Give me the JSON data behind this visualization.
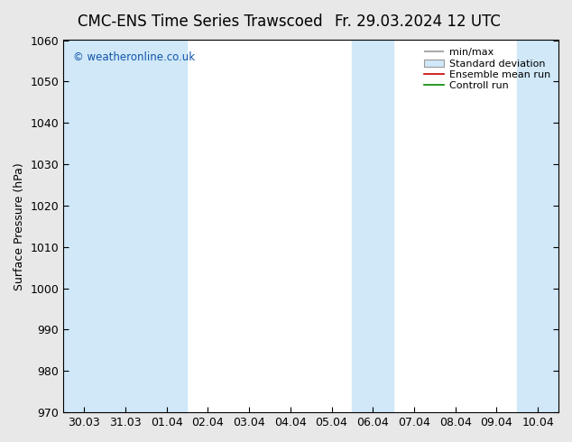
{
  "title_left": "CMC-ENS Time Series Trawscoed",
  "title_right": "Fr. 29.03.2024 12 UTC",
  "ylabel": "Surface Pressure (hPa)",
  "ylim": [
    970,
    1060
  ],
  "yticks": [
    970,
    980,
    990,
    1000,
    1010,
    1020,
    1030,
    1040,
    1050,
    1060
  ],
  "x_labels": [
    "30.03",
    "31.03",
    "01.04",
    "02.04",
    "03.04",
    "04.04",
    "05.04",
    "06.04",
    "07.04",
    "08.04",
    "09.04",
    "10.04"
  ],
  "x_positions": [
    0,
    1,
    2,
    3,
    4,
    5,
    6,
    7,
    8,
    9,
    10,
    11
  ],
  "shaded_bands": [
    {
      "xmin": -0.5,
      "xmax": 0.5
    },
    {
      "xmin": 0.5,
      "xmax": 1.5
    },
    {
      "xmin": 1.5,
      "xmax": 2.5
    },
    {
      "xmin": 6.5,
      "xmax": 7.5
    },
    {
      "xmin": 10.5,
      "xmax": 11.5
    }
  ],
  "background_color": "#e8e8e8",
  "plot_bg_color": "#ffffff",
  "shaded_color": "#d0e8f8",
  "legend_entries": [
    {
      "label": "min/max",
      "style": "minmax"
    },
    {
      "label": "Standard deviation",
      "style": "stddev"
    },
    {
      "label": "Ensemble mean run",
      "color": "#cc0000",
      "style": "line"
    },
    {
      "label": "Controll run",
      "color": "#008800",
      "style": "line"
    }
  ],
  "watermark": "© weatheronline.co.uk",
  "watermark_color": "#1155aa",
  "title_fontsize": 12,
  "ylabel_fontsize": 9,
  "tick_fontsize": 9,
  "legend_fontsize": 8
}
